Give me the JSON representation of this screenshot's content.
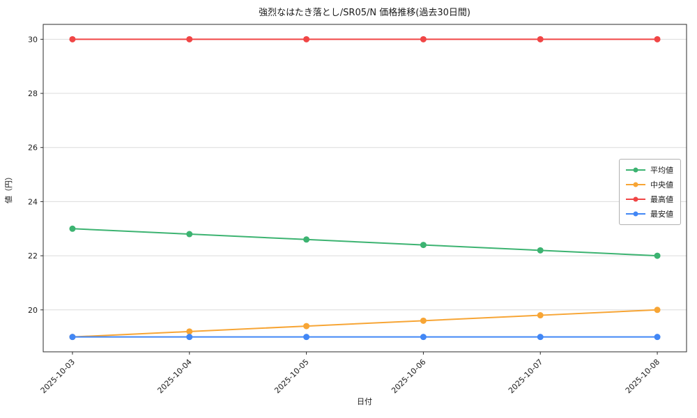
{
  "chart_data": {
    "type": "line",
    "title": "強烈なはたき落とし/SR05/N 価格推移(過去30日間)",
    "xlabel": "日付",
    "ylabel": "値（円）",
    "x": [
      "2025-10-03",
      "2025-10-04",
      "2025-10-05",
      "2025-10-06",
      "2025-10-07",
      "2025-10-08"
    ],
    "series": [
      {
        "name": "平均値",
        "color": "#3cb371",
        "values": [
          23.0,
          22.8,
          22.6,
          22.4,
          22.2,
          22.0
        ]
      },
      {
        "name": "中央値",
        "color": "#f7a535",
        "values": [
          19.0,
          19.2,
          19.4,
          19.6,
          19.8,
          20.0
        ]
      },
      {
        "name": "最高値",
        "color": "#f04545",
        "values": [
          30.0,
          30.0,
          30.0,
          30.0,
          30.0,
          30.0
        ]
      },
      {
        "name": "最安値",
        "color": "#4287f5",
        "values": [
          19.0,
          19.0,
          19.0,
          19.0,
          19.0,
          19.0
        ]
      }
    ],
    "ylim": [
      18.45,
      30.55
    ],
    "yticks": [
      20,
      22,
      24,
      26,
      28,
      30
    ],
    "grid": "horizontal",
    "legend_position": "center-right",
    "colors": {
      "grid": "#dcdcdc",
      "spine": "#2b2b2b",
      "text": "#1a1a1a"
    }
  }
}
